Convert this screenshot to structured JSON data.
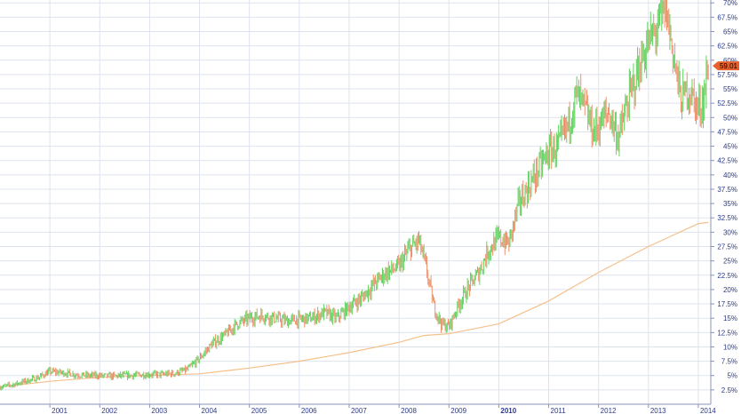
{
  "chart_data": {
    "type": "line",
    "title": "",
    "xlabel": "",
    "ylabel": "",
    "x_range": [
      2000.0,
      2014.25
    ],
    "ylim": [
      0,
      70.5
    ],
    "y_ticks": [
      2.5,
      5,
      7.5,
      10,
      12.5,
      15,
      17.5,
      20,
      22.5,
      25,
      27.5,
      30,
      32.5,
      35,
      37.5,
      40,
      42.5,
      45,
      47.5,
      50,
      52.5,
      55,
      57.5,
      60,
      62.5,
      65,
      67.5,
      70
    ],
    "y_tick_labels": [
      "2.5%",
      "5%",
      "7.5%",
      "10%",
      "12.5%",
      "15%",
      "17.5%",
      "20%",
      "22.5%",
      "25%",
      "27.5%",
      "30%",
      "32.5%",
      "35%",
      "37.5%",
      "40%",
      "42.5%",
      "45%",
      "47.5%",
      "50%",
      "52.5%",
      "55%",
      "57.5%",
      "60%",
      "62.5%",
      "65%",
      "67.5%",
      "70%"
    ],
    "x_ticks": [
      {
        "x": 2001,
        "label": "2001",
        "bold": false
      },
      {
        "x": 2002,
        "label": "2002",
        "bold": false
      },
      {
        "x": 2003,
        "label": "2003",
        "bold": false
      },
      {
        "x": 2004,
        "label": "2004",
        "bold": false
      },
      {
        "x": 2005,
        "label": "2005",
        "bold": false
      },
      {
        "x": 2006,
        "label": "2006",
        "bold": false
      },
      {
        "x": 2007,
        "label": "2007",
        "bold": false
      },
      {
        "x": 2008,
        "label": "2008",
        "bold": false
      },
      {
        "x": 2009,
        "label": "2009",
        "bold": false
      },
      {
        "x": 2010,
        "label": "2010",
        "bold": true
      },
      {
        "x": 2011,
        "label": "2011",
        "bold": false
      },
      {
        "x": 2012,
        "label": "2012",
        "bold": false
      },
      {
        "x": 2013,
        "label": "2013",
        "bold": false
      },
      {
        "x": 2014,
        "label": "2014",
        "bold": false
      }
    ],
    "grid": true,
    "last_value_label": "59.01",
    "colors": {
      "up": "#5fd35f",
      "down": "#f0906a",
      "moving_average": "#f5c08a",
      "badge": "#e8602c",
      "axis_text": "#2b3a8c"
    },
    "series": [
      {
        "kind": "price",
        "x": [
          2000.0,
          2000.25,
          2000.5,
          2000.75,
          2001.0,
          2001.25,
          2001.5,
          2001.75,
          2002.0,
          2002.25,
          2002.5,
          2002.75,
          2003.0,
          2003.25,
          2003.5,
          2003.75,
          2004.0,
          2004.25,
          2004.5,
          2004.75,
          2005.0,
          2005.25,
          2005.5,
          2005.75,
          2006.0,
          2006.25,
          2006.5,
          2006.75,
          2007.0,
          2007.25,
          2007.5,
          2007.75,
          2008.0,
          2008.2,
          2008.4,
          2008.55,
          2008.7,
          2008.85,
          2009.0,
          2009.2,
          2009.4,
          2009.6,
          2009.8,
          2010.0,
          2010.2,
          2010.4,
          2010.6,
          2010.8,
          2011.0,
          2011.2,
          2011.4,
          2011.55,
          2011.7,
          2011.9,
          2012.0,
          2012.2,
          2012.4,
          2012.6,
          2012.8,
          2013.0,
          2013.2,
          2013.35,
          2013.5,
          2013.65,
          2013.8,
          2014.0,
          2014.1,
          2014.2
        ],
        "y": [
          3.0,
          3.4,
          4.0,
          4.6,
          5.7,
          5.5,
          5.2,
          5.0,
          5.0,
          4.9,
          5.0,
          5.1,
          5.2,
          5.2,
          5.4,
          6.0,
          8.0,
          10.5,
          12.0,
          14.0,
          15.0,
          15.5,
          15.0,
          14.5,
          14.8,
          15.0,
          16.0,
          15.0,
          17.0,
          18.5,
          21.0,
          23.0,
          24.0,
          27.0,
          28.5,
          23.5,
          17.0,
          14.0,
          13.5,
          17.5,
          20.5,
          23.0,
          27.0,
          29.0,
          28.0,
          35.0,
          38.0,
          41.0,
          44.0,
          45.0,
          49.0,
          54.0,
          52.0,
          47.5,
          48.5,
          51.0,
          46.5,
          53.0,
          58.5,
          63.0,
          66.0,
          69.0,
          61.0,
          53.0,
          55.0,
          51.5,
          53.0,
          59.01
        ]
      },
      {
        "kind": "moving_average",
        "x": [
          2000.0,
          2001.0,
          2002.0,
          2003.0,
          2004.0,
          2005.0,
          2006.0,
          2007.0,
          2008.0,
          2008.5,
          2009.0,
          2010.0,
          2011.0,
          2012.0,
          2013.0,
          2014.0,
          2014.2
        ],
        "y": [
          3.0,
          4.0,
          4.7,
          5.0,
          5.3,
          6.3,
          7.5,
          9.0,
          10.8,
          12.0,
          12.3,
          14.0,
          18.0,
          23.0,
          27.5,
          31.5,
          31.7
        ]
      }
    ]
  }
}
